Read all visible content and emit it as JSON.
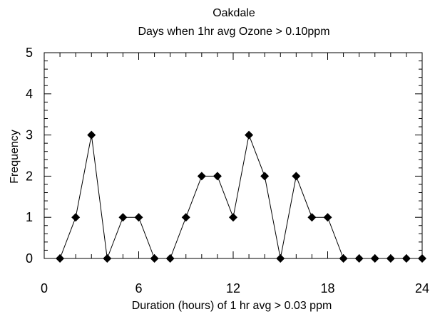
{
  "chart_data": {
    "type": "line",
    "title": "Oakdale",
    "subtitle": "Days when 1hr avg Ozone > 0.10ppm",
    "xlabel": "Duration (hours) of 1 hr avg > 0.03 ppm",
    "ylabel": "Frequency",
    "xlim": [
      0,
      24
    ],
    "ylim": [
      0,
      5
    ],
    "x_ticks": [
      0,
      6,
      12,
      18,
      24
    ],
    "y_ticks": [
      0,
      1,
      2,
      3,
      4,
      5
    ],
    "x_minor_step": 1,
    "y_minor_step": 0.2,
    "grid": false,
    "marker": "diamond",
    "series": [
      {
        "x": [
          1,
          2,
          3,
          4,
          5,
          6,
          7,
          8,
          9,
          10,
          11,
          12,
          13,
          14,
          15,
          16,
          17,
          18,
          19,
          20,
          21,
          22,
          23,
          24
        ],
        "values": [
          0,
          1,
          3,
          0,
          1,
          1,
          0,
          0,
          1,
          2,
          2,
          1,
          3,
          2,
          0,
          2,
          1,
          1,
          0,
          0,
          0,
          0,
          0,
          0
        ]
      }
    ],
    "colors": {
      "line": "#000000",
      "marker": "#000000",
      "axis": "#000000"
    }
  }
}
